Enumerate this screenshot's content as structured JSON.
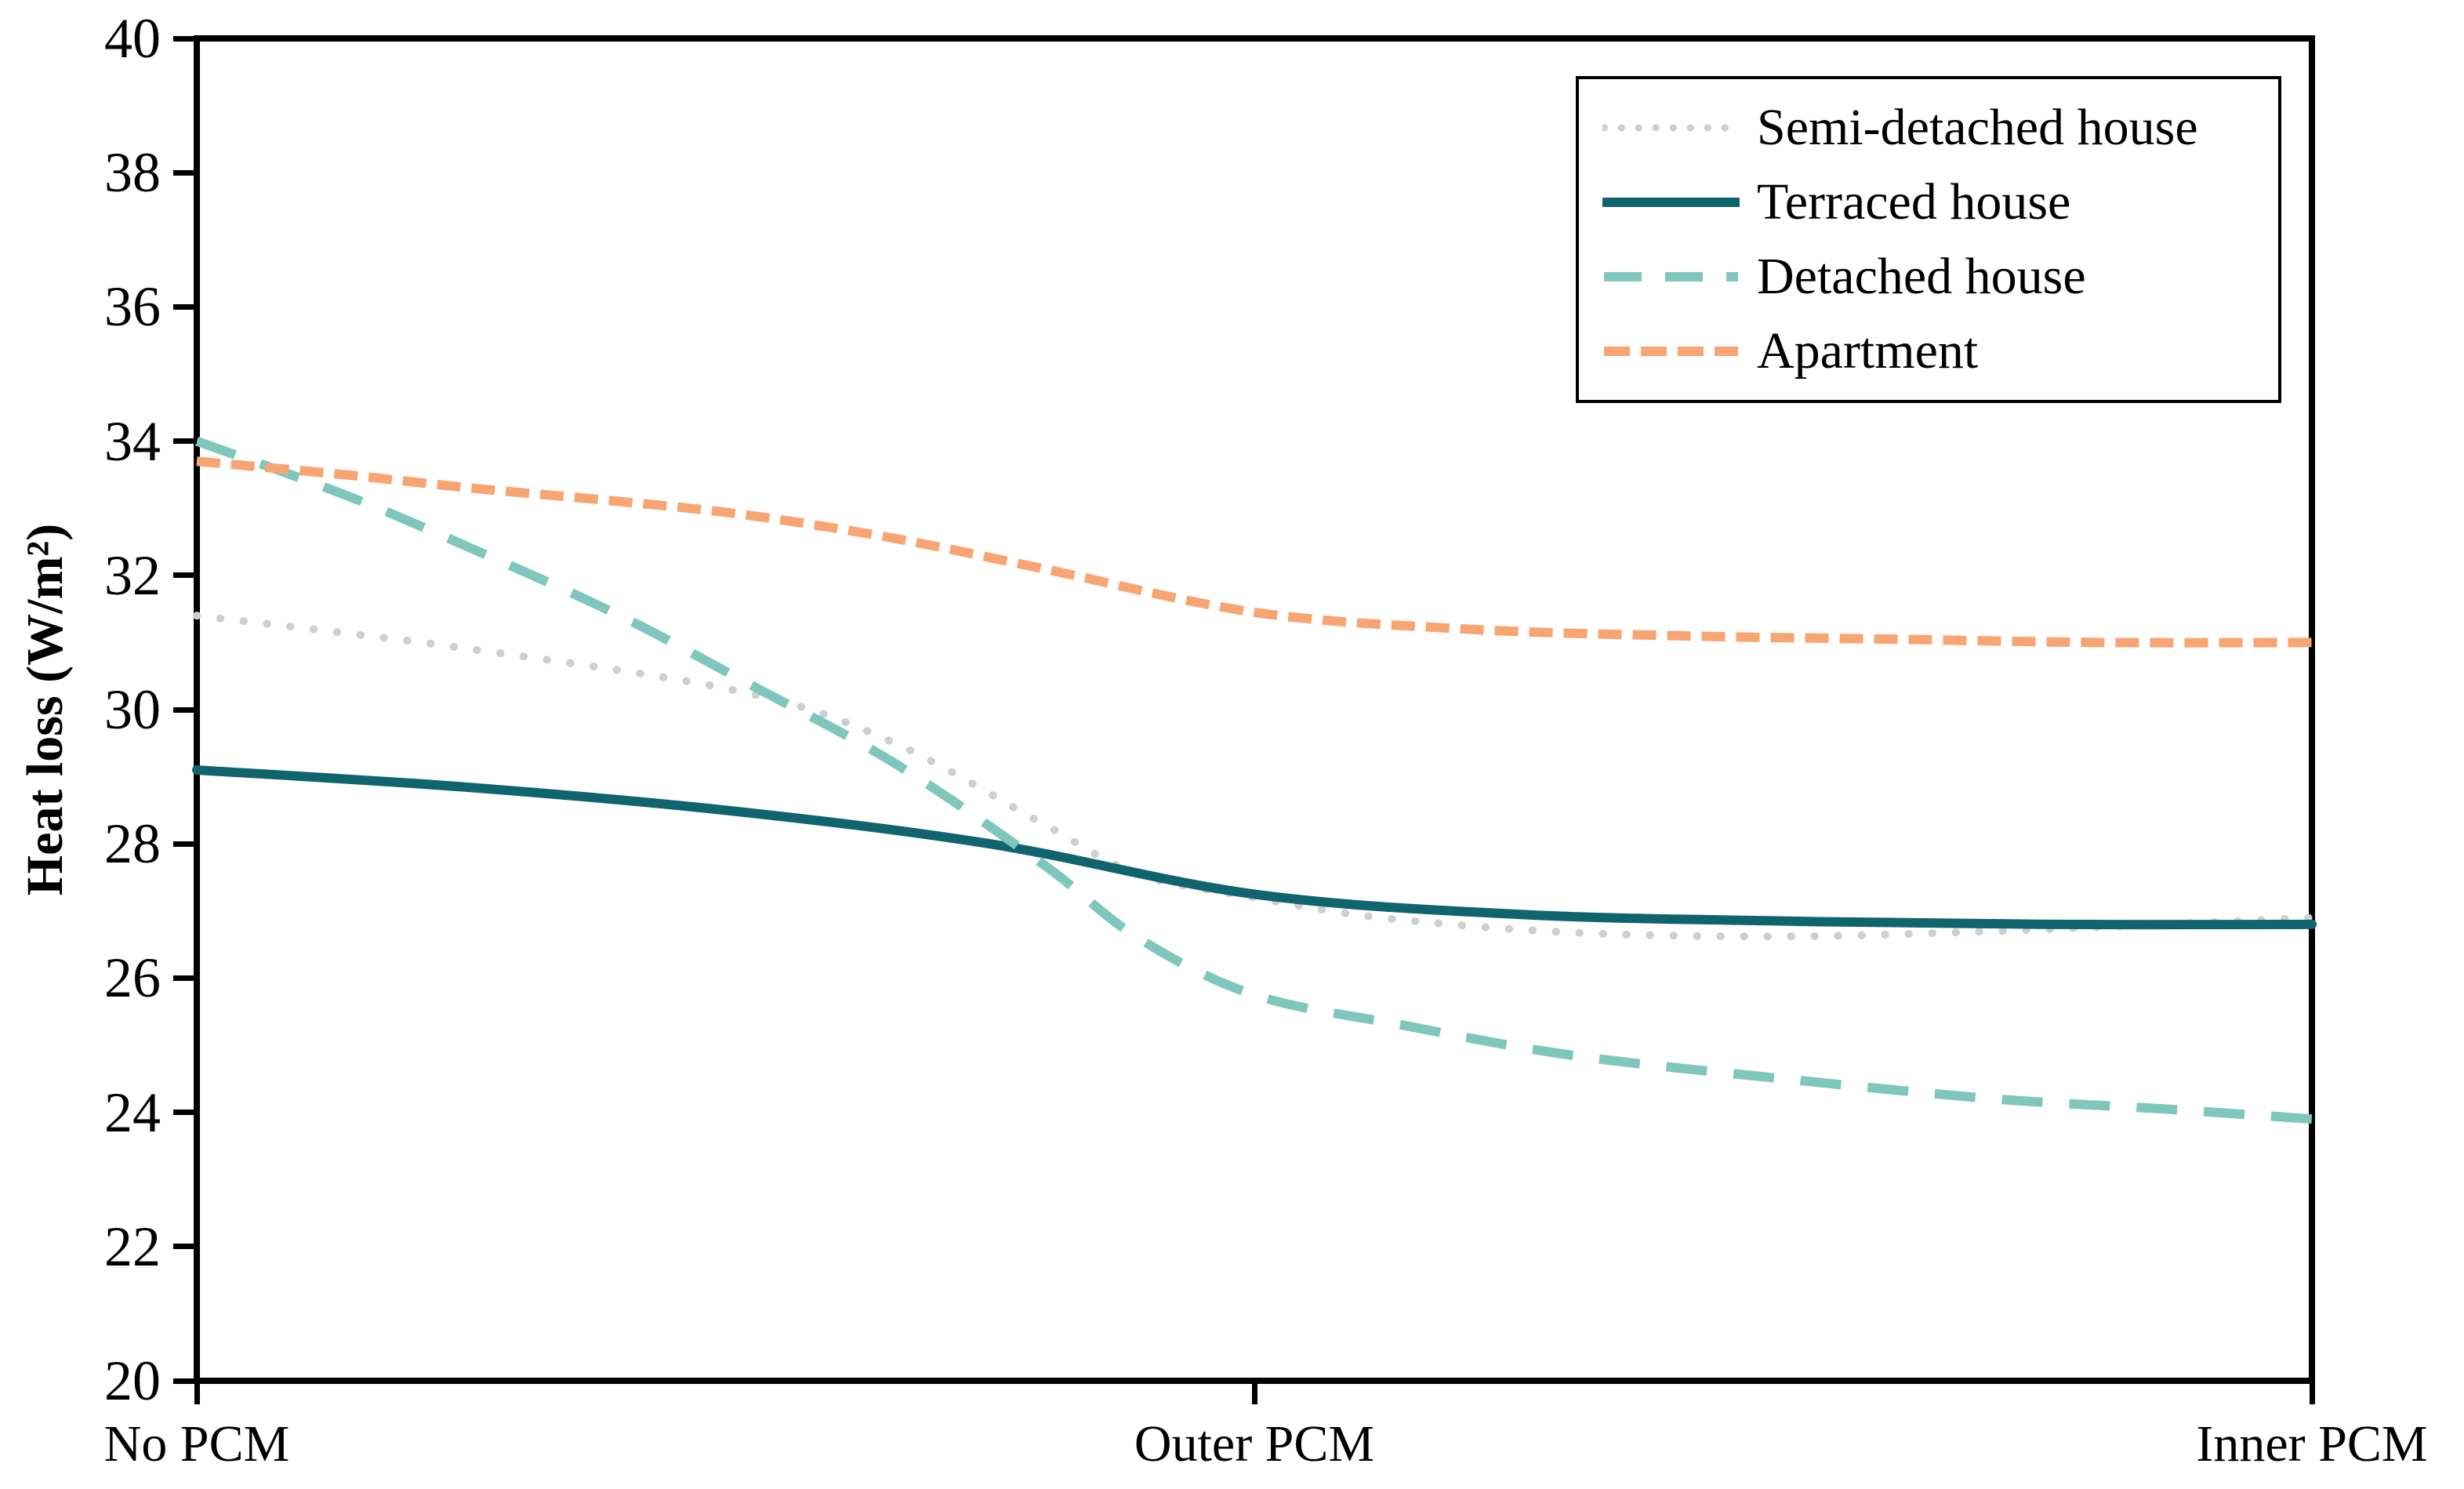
{
  "chart_data": {
    "type": "line",
    "title": "",
    "xlabel": "",
    "ylabel": "Heat loss (W/m²)",
    "ylim": [
      20,
      40
    ],
    "yticks": [
      40,
      38,
      36,
      34,
      32,
      30,
      28,
      26,
      24,
      22,
      20
    ],
    "categories": [
      "No PCM",
      "Outer PCM",
      "Inner PCM"
    ],
    "category_positions": [
      0,
      0.5,
      1
    ],
    "grid": false,
    "legend_position": "top-right",
    "axis_color": "#000000",
    "series": [
      {
        "name": "Semi-detached house",
        "color": "#cfcfcf",
        "style": "dotted",
        "x": [
          0,
          0.13,
          0.26,
          0.33,
          0.4,
          0.445,
          0.5,
          0.56,
          0.65,
          0.75,
          0.85,
          0.93,
          1
        ],
        "values": [
          31.4,
          30.9,
          30.25,
          29.5,
          28.3,
          27.55,
          27.2,
          26.9,
          26.68,
          26.62,
          26.7,
          26.8,
          26.9
        ],
        "values_at_categories": {
          "No PCM": 31.4,
          "Outer PCM": 27.2,
          "Inner PCM": 26.9
        }
      },
      {
        "name": "Terraced house",
        "color": "#10646e",
        "style": "solid",
        "x": [
          0,
          0.125,
          0.25,
          0.375,
          0.5,
          0.625,
          0.75,
          0.875,
          1
        ],
        "values": [
          29.1,
          28.85,
          28.5,
          28.0,
          27.25,
          26.95,
          26.85,
          26.8,
          26.8
        ],
        "values_at_categories": {
          "No PCM": 29.1,
          "Outer PCM": 27.25,
          "Inner PCM": 26.8
        }
      },
      {
        "name": "Detached house",
        "color": "#7fc7bd",
        "style": "long-dash",
        "x": [
          0,
          0.07,
          0.13,
          0.2,
          0.26,
          0.33,
          0.4,
          0.445,
          0.5,
          0.57,
          0.65,
          0.75,
          0.85,
          0.93,
          1
        ],
        "values": [
          34.0,
          33.2,
          32.4,
          31.4,
          30.4,
          29.2,
          27.7,
          26.6,
          25.75,
          25.3,
          24.85,
          24.5,
          24.2,
          24.05,
          23.9
        ],
        "values_at_categories": {
          "No PCM": 34.0,
          "Outer PCM": 25.75,
          "Inner PCM": 23.9
        }
      },
      {
        "name": "Apartment",
        "color": "#f8a573",
        "style": "short-dash",
        "x": [
          0,
          0.07,
          0.13,
          0.2,
          0.26,
          0.33,
          0.4,
          0.5,
          0.6,
          0.7,
          0.8,
          0.9,
          1
        ],
        "values": [
          33.7,
          33.5,
          33.3,
          33.1,
          32.9,
          32.55,
          32.1,
          31.45,
          31.2,
          31.1,
          31.05,
          31.0,
          31.0
        ],
        "values_at_categories": {
          "No PCM": 33.7,
          "Outer PCM": 31.45,
          "Inner PCM": 31.0
        }
      }
    ]
  }
}
